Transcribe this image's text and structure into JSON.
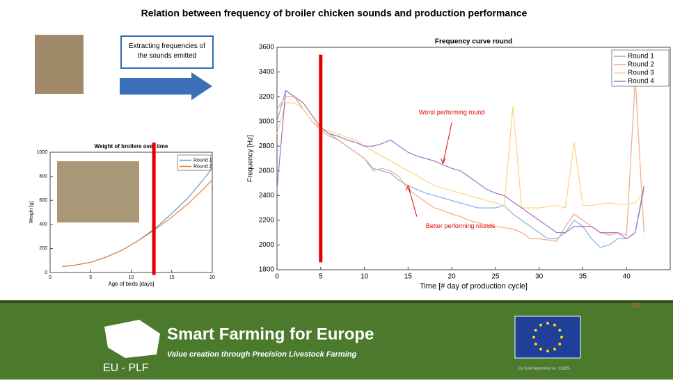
{
  "title": "Relation between frequency of broiler chicken sounds and production performance",
  "callout": "Extracting frequencies of the sounds emitted",
  "footer": {
    "brand": "Smart Farming for Europe",
    "tagline": "Value creation through Precision Livestock Farming",
    "logo_text": "EU - PLF",
    "page": "28",
    "grant": "EU Grant Agreement no.: 311825"
  },
  "chart_data": [
    {
      "type": "line",
      "title": "Weight of broilers over time",
      "xlabel": "Age of birds [days]",
      "ylabel": "Weight [g]",
      "x": [
        1.5,
        3,
        5,
        7,
        9,
        11,
        13,
        15,
        17,
        19,
        20
      ],
      "series": [
        {
          "name": "Round 1",
          "color": "#5b9bd5",
          "values": [
            50,
            60,
            85,
            130,
            190,
            270,
            370,
            490,
            620,
            780,
            870
          ]
        },
        {
          "name": "Round 2",
          "color": "#ed7d31",
          "values": [
            50,
            60,
            85,
            130,
            190,
            270,
            360,
            460,
            570,
            700,
            770
          ]
        }
      ],
      "xlim": [
        0,
        20
      ],
      "xticks": [
        0,
        5,
        10,
        15,
        20
      ],
      "ylim": [
        0,
        1000
      ],
      "yticks": [
        0,
        200,
        400,
        600,
        800,
        1000
      ],
      "vline": {
        "x": 12.8,
        "from": -20,
        "to": 1080,
        "color": "#e60000"
      },
      "legend": "upper right"
    },
    {
      "type": "line",
      "title": "Frequency curve round",
      "xlabel": "Time [# day of production cycle]",
      "ylabel": "Frequency [Hz]",
      "x": [
        0,
        1,
        2,
        3,
        4,
        5,
        6,
        7,
        8,
        9,
        10,
        11,
        12,
        13,
        14,
        15,
        16,
        17,
        18,
        19,
        20,
        21,
        22,
        23,
        24,
        25,
        26,
        27,
        28,
        29,
        30,
        31,
        32,
        33,
        34,
        35,
        36,
        37,
        38,
        39,
        40,
        41,
        42
      ],
      "series": [
        {
          "name": "Round 1",
          "color": "#7fb3e0",
          "values": [
            3000,
            3250,
            3200,
            3100,
            3000,
            2950,
            2900,
            2850,
            2800,
            2750,
            2700,
            2620,
            2600,
            2580,
            2520,
            2480,
            2450,
            2420,
            2400,
            2380,
            2360,
            2340,
            2320,
            2300,
            2300,
            2300,
            2320,
            2250,
            2200,
            2150,
            2100,
            2050,
            2050,
            2100,
            2200,
            2150,
            2050,
            1980,
            2000,
            2050,
            2050,
            2100,
            2450
          ]
        },
        {
          "name": "Round 2",
          "color": "#f4a880",
          "values": [
            3100,
            3200,
            3200,
            3100,
            3000,
            2930,
            2880,
            2850,
            2800,
            2750,
            2700,
            2600,
            2620,
            2600,
            2550,
            2450,
            2400,
            2350,
            2300,
            2280,
            2250,
            2230,
            2200,
            2180,
            2160,
            2150,
            2140,
            2130,
            2100,
            2050,
            2050,
            2040,
            2030,
            2150,
            2250,
            2200,
            2150,
            2100,
            2080,
            2100,
            2080,
            3350,
            2100
          ]
        },
        {
          "name": "Round 3",
          "color": "#ffd27f",
          "values": [
            2900,
            3150,
            3150,
            3100,
            3000,
            2950,
            2920,
            2900,
            2870,
            2850,
            2800,
            2760,
            2720,
            2680,
            2640,
            2600,
            2560,
            2520,
            2480,
            2460,
            2440,
            2420,
            2400,
            2380,
            2360,
            2340,
            2320,
            3120,
            2300,
            2300,
            2300,
            2310,
            2320,
            2300,
            2830,
            2320,
            2320,
            2330,
            2340,
            2330,
            2330,
            2340,
            2430
          ]
        },
        {
          "name": "Round 4",
          "color": "#a070c8",
          "values": [
            2450,
            3250,
            3200,
            3150,
            3050,
            2950,
            2900,
            2880,
            2850,
            2830,
            2800,
            2800,
            2820,
            2850,
            2800,
            2750,
            2720,
            2700,
            2680,
            2650,
            2620,
            2600,
            2550,
            2500,
            2450,
            2420,
            2400,
            2350,
            2300,
            2250,
            2200,
            2150,
            2100,
            2100,
            2150,
            2150,
            2150,
            2100,
            2100,
            2100,
            2050,
            2100,
            2480
          ]
        }
      ],
      "xlim": [
        0,
        45
      ],
      "xticks": [
        0,
        5,
        10,
        15,
        20,
        25,
        30,
        35,
        40
      ],
      "ylim": [
        1800,
        3600
      ],
      "yticks": [
        1800,
        2000,
        2200,
        2400,
        2600,
        2800,
        3000,
        3200,
        3400,
        3600
      ],
      "vline": {
        "x": 5,
        "from": 1860,
        "to": 3540,
        "color": "#e60000"
      },
      "legend": "upper right",
      "annotations": [
        {
          "text": "Worst performing round",
          "x": 20,
          "y": 3070
        },
        {
          "text": "Better performing rounds",
          "x": 21,
          "y": 2150
        }
      ]
    }
  ]
}
